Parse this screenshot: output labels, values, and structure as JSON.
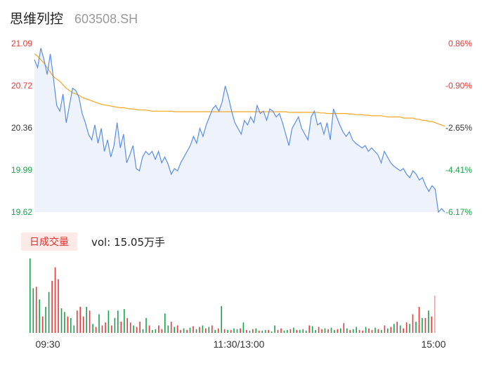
{
  "header": {
    "stock_name": "思维列控",
    "stock_code": "603508.SH"
  },
  "volume_panel": {
    "tag_label": "日成交量",
    "summary": "vol: 15.05万手"
  },
  "colors": {
    "price_line": "#5a8de8",
    "avg_line": "#f5a623",
    "up": "#e83838",
    "down": "#18a34a",
    "area_fill": "#eef3fb",
    "volume_last": "#f3a0a0",
    "axis_text": "#333333"
  },
  "chart_data": {
    "type": "line",
    "price_ticks": [
      "21.09",
      "20.72",
      "20.36",
      "19.99",
      "19.62"
    ],
    "pct_ticks": [
      "0.86%",
      "-0.90%",
      "-2.65%",
      "-4.41%",
      "-6.17%"
    ],
    "price_range": [
      19.62,
      21.09
    ],
    "x_labels": [
      "09:30",
      "11:30/13:00",
      "15:00"
    ],
    "series": [
      {
        "values": [
          20.95,
          20.88,
          21.05,
          20.95,
          20.82,
          21.0,
          20.78,
          20.55,
          20.5,
          20.65,
          20.4,
          20.55,
          20.7,
          20.68,
          20.62,
          20.48,
          20.4,
          20.3,
          20.25,
          20.38,
          20.22,
          20.35,
          20.15,
          20.25,
          20.1,
          20.2,
          20.4,
          20.18,
          20.3,
          20.05,
          20.12,
          20.2,
          20.0,
          19.98,
          20.1,
          20.15,
          20.12,
          20.15,
          20.08,
          20.15,
          20.05,
          20.1,
          20.04,
          19.95,
          20.0,
          19.98,
          20.05,
          20.1,
          20.15,
          20.2,
          20.28,
          20.22,
          20.35,
          20.28,
          20.38,
          20.45,
          20.52,
          20.55,
          20.5,
          20.58,
          20.72,
          20.62,
          20.5,
          20.4,
          20.35,
          20.3,
          20.42,
          20.38,
          20.45,
          20.4,
          20.55,
          20.48,
          20.5,
          20.42,
          20.52,
          20.5,
          20.45,
          20.48,
          20.4,
          20.3,
          20.2,
          20.35,
          20.4,
          20.45,
          20.35,
          20.3,
          20.25,
          20.45,
          20.5,
          20.38,
          20.4,
          20.3,
          20.4,
          20.25,
          20.52,
          20.45,
          20.38,
          20.32,
          20.28,
          20.32,
          20.25,
          20.22,
          20.2,
          20.18,
          20.2,
          20.15,
          20.18,
          20.15,
          20.12,
          20.05,
          20.15,
          20.1,
          20.05,
          20.02,
          20.0,
          19.98,
          20.0,
          19.95,
          19.92,
          19.98,
          19.95,
          19.9,
          19.92,
          19.85,
          19.8,
          19.85,
          19.82,
          19.62,
          19.65,
          19.62
        ]
      },
      {
        "values": [
          21.0,
          20.98,
          20.95,
          20.92,
          20.88,
          20.84,
          20.8,
          20.78,
          20.76,
          20.73,
          20.7,
          20.68,
          20.66,
          20.65,
          20.64,
          20.62,
          20.61,
          20.6,
          20.59,
          20.58,
          20.57,
          20.56,
          20.555,
          20.55,
          20.545,
          20.54,
          20.535,
          20.53,
          20.53,
          20.525,
          20.52,
          20.52,
          20.515,
          20.51,
          20.51,
          20.51,
          20.505,
          20.5,
          20.5,
          20.5,
          20.5,
          20.5,
          20.5,
          20.5,
          20.495,
          20.495,
          20.495,
          20.495,
          20.495,
          20.495,
          20.495,
          20.495,
          20.495,
          20.495,
          20.495,
          20.495,
          20.495,
          20.495,
          20.495,
          20.495,
          20.495,
          20.495,
          20.495,
          20.495,
          20.495,
          20.495,
          20.495,
          20.495,
          20.495,
          20.495,
          20.495,
          20.495,
          20.495,
          20.495,
          20.495,
          20.495,
          20.495,
          20.495,
          20.495,
          20.495,
          20.49,
          20.49,
          20.49,
          20.49,
          20.49,
          20.49,
          20.49,
          20.49,
          20.49,
          20.49,
          20.485,
          20.485,
          20.48,
          20.48,
          20.48,
          20.48,
          20.48,
          20.48,
          20.48,
          20.475,
          20.475,
          20.47,
          20.47,
          20.47,
          20.465,
          20.465,
          20.46,
          20.46,
          20.46,
          20.46,
          20.455,
          20.45,
          20.45,
          20.45,
          20.45,
          20.45,
          20.44,
          20.44,
          20.44,
          20.44,
          20.43,
          20.43,
          20.42,
          20.42,
          20.41,
          20.41,
          20.4,
          20.39,
          20.38,
          20.37
        ]
      }
    ],
    "volume": [
      {
        "v": 100,
        "d": "down"
      },
      {
        "v": 60,
        "d": "down"
      },
      {
        "v": 62,
        "d": "up"
      },
      {
        "v": 45,
        "d": "down"
      },
      {
        "v": 22,
        "d": "up"
      },
      {
        "v": 35,
        "d": "down"
      },
      {
        "v": 55,
        "d": "down"
      },
      {
        "v": 70,
        "d": "up"
      },
      {
        "v": 88,
        "d": "up"
      },
      {
        "v": 72,
        "d": "up"
      },
      {
        "v": 33,
        "d": "down"
      },
      {
        "v": 28,
        "d": "down"
      },
      {
        "v": 22,
        "d": "up"
      },
      {
        "v": 20,
        "d": "down"
      },
      {
        "v": 10,
        "d": "down"
      },
      {
        "v": 30,
        "d": "up"
      },
      {
        "v": 35,
        "d": "up"
      },
      {
        "v": 22,
        "d": "up"
      },
      {
        "v": 35,
        "d": "down"
      },
      {
        "v": 30,
        "d": "up"
      },
      {
        "v": 12,
        "d": "down"
      },
      {
        "v": 8,
        "d": "up"
      },
      {
        "v": 25,
        "d": "down"
      },
      {
        "v": 10,
        "d": "up"
      },
      {
        "v": 14,
        "d": "up"
      },
      {
        "v": 30,
        "d": "down"
      },
      {
        "v": 10,
        "d": "up"
      },
      {
        "v": 20,
        "d": "down"
      },
      {
        "v": 30,
        "d": "down"
      },
      {
        "v": 15,
        "d": "up"
      },
      {
        "v": 32,
        "d": "down"
      },
      {
        "v": 20,
        "d": "up"
      },
      {
        "v": 14,
        "d": "up"
      },
      {
        "v": 10,
        "d": "down"
      },
      {
        "v": 8,
        "d": "up"
      },
      {
        "v": 15,
        "d": "up"
      },
      {
        "v": 5,
        "d": "down"
      },
      {
        "v": 20,
        "d": "down"
      },
      {
        "v": 10,
        "d": "up"
      },
      {
        "v": 4,
        "d": "down"
      },
      {
        "v": 5,
        "d": "down"
      },
      {
        "v": 10,
        "d": "up"
      },
      {
        "v": 5,
        "d": "up"
      },
      {
        "v": 26,
        "d": "down"
      },
      {
        "v": 10,
        "d": "down"
      },
      {
        "v": 15,
        "d": "up"
      },
      {
        "v": 8,
        "d": "down"
      },
      {
        "v": 10,
        "d": "up"
      },
      {
        "v": 4,
        "d": "up"
      },
      {
        "v": 6,
        "d": "down"
      },
      {
        "v": 4,
        "d": "up"
      },
      {
        "v": 7,
        "d": "down"
      },
      {
        "v": 9,
        "d": "up"
      },
      {
        "v": 5,
        "d": "down"
      },
      {
        "v": 8,
        "d": "up"
      },
      {
        "v": 10,
        "d": "down"
      },
      {
        "v": 6,
        "d": "up"
      },
      {
        "v": 8,
        "d": "down"
      },
      {
        "v": 10,
        "d": "up"
      },
      {
        "v": 4,
        "d": "down"
      },
      {
        "v": 6,
        "d": "up"
      },
      {
        "v": 36,
        "d": "down"
      },
      {
        "v": 5,
        "d": "up"
      },
      {
        "v": 4,
        "d": "down"
      },
      {
        "v": 4,
        "d": "up"
      },
      {
        "v": 6,
        "d": "down"
      },
      {
        "v": 5,
        "d": "down"
      },
      {
        "v": 6,
        "d": "up"
      },
      {
        "v": 14,
        "d": "down"
      },
      {
        "v": 4,
        "d": "up"
      },
      {
        "v": 3,
        "d": "down"
      },
      {
        "v": 5,
        "d": "up"
      },
      {
        "v": 6,
        "d": "down"
      },
      {
        "v": 3,
        "d": "up"
      },
      {
        "v": 3,
        "d": "down"
      },
      {
        "v": 4,
        "d": "down"
      },
      {
        "v": 4,
        "d": "up"
      },
      {
        "v": 2,
        "d": "down"
      },
      {
        "v": 10,
        "d": "down"
      },
      {
        "v": 4,
        "d": "up"
      },
      {
        "v": 6,
        "d": "up"
      },
      {
        "v": 3,
        "d": "down"
      },
      {
        "v": 4,
        "d": "down"
      },
      {
        "v": 5,
        "d": "up"
      },
      {
        "v": 7,
        "d": "down"
      },
      {
        "v": 4,
        "d": "up"
      },
      {
        "v": 4,
        "d": "down"
      },
      {
        "v": 5,
        "d": "down"
      },
      {
        "v": 3,
        "d": "down"
      },
      {
        "v": 10,
        "d": "up"
      },
      {
        "v": 9,
        "d": "down"
      },
      {
        "v": 4,
        "d": "down"
      },
      {
        "v": 8,
        "d": "up"
      },
      {
        "v": 5,
        "d": "up"
      },
      {
        "v": 6,
        "d": "down"
      },
      {
        "v": 5,
        "d": "up"
      },
      {
        "v": 7,
        "d": "down"
      },
      {
        "v": 4,
        "d": "down"
      },
      {
        "v": 5,
        "d": "up"
      },
      {
        "v": 6,
        "d": "down"
      },
      {
        "v": 13,
        "d": "up"
      },
      {
        "v": 6,
        "d": "down"
      },
      {
        "v": 4,
        "d": "up"
      },
      {
        "v": 5,
        "d": "down"
      },
      {
        "v": 8,
        "d": "down"
      },
      {
        "v": 4,
        "d": "up"
      },
      {
        "v": 3,
        "d": "up"
      },
      {
        "v": 8,
        "d": "down"
      },
      {
        "v": 6,
        "d": "up"
      },
      {
        "v": 4,
        "d": "up"
      },
      {
        "v": 7,
        "d": "down"
      },
      {
        "v": 5,
        "d": "up"
      },
      {
        "v": 4,
        "d": "down"
      },
      {
        "v": 10,
        "d": "up"
      },
      {
        "v": 6,
        "d": "down"
      },
      {
        "v": 8,
        "d": "up"
      },
      {
        "v": 12,
        "d": "down"
      },
      {
        "v": 15,
        "d": "up"
      },
      {
        "v": 10,
        "d": "down"
      },
      {
        "v": 6,
        "d": "up"
      },
      {
        "v": 14,
        "d": "up"
      },
      {
        "v": 12,
        "d": "down"
      },
      {
        "v": 25,
        "d": "up"
      },
      {
        "v": 15,
        "d": "down"
      },
      {
        "v": 35,
        "d": "up"
      },
      {
        "v": 20,
        "d": "down"
      },
      {
        "v": 20,
        "d": "up"
      },
      {
        "v": 30,
        "d": "down"
      },
      {
        "v": 22,
        "d": "up"
      },
      {
        "v": 50,
        "d": "last"
      }
    ]
  }
}
